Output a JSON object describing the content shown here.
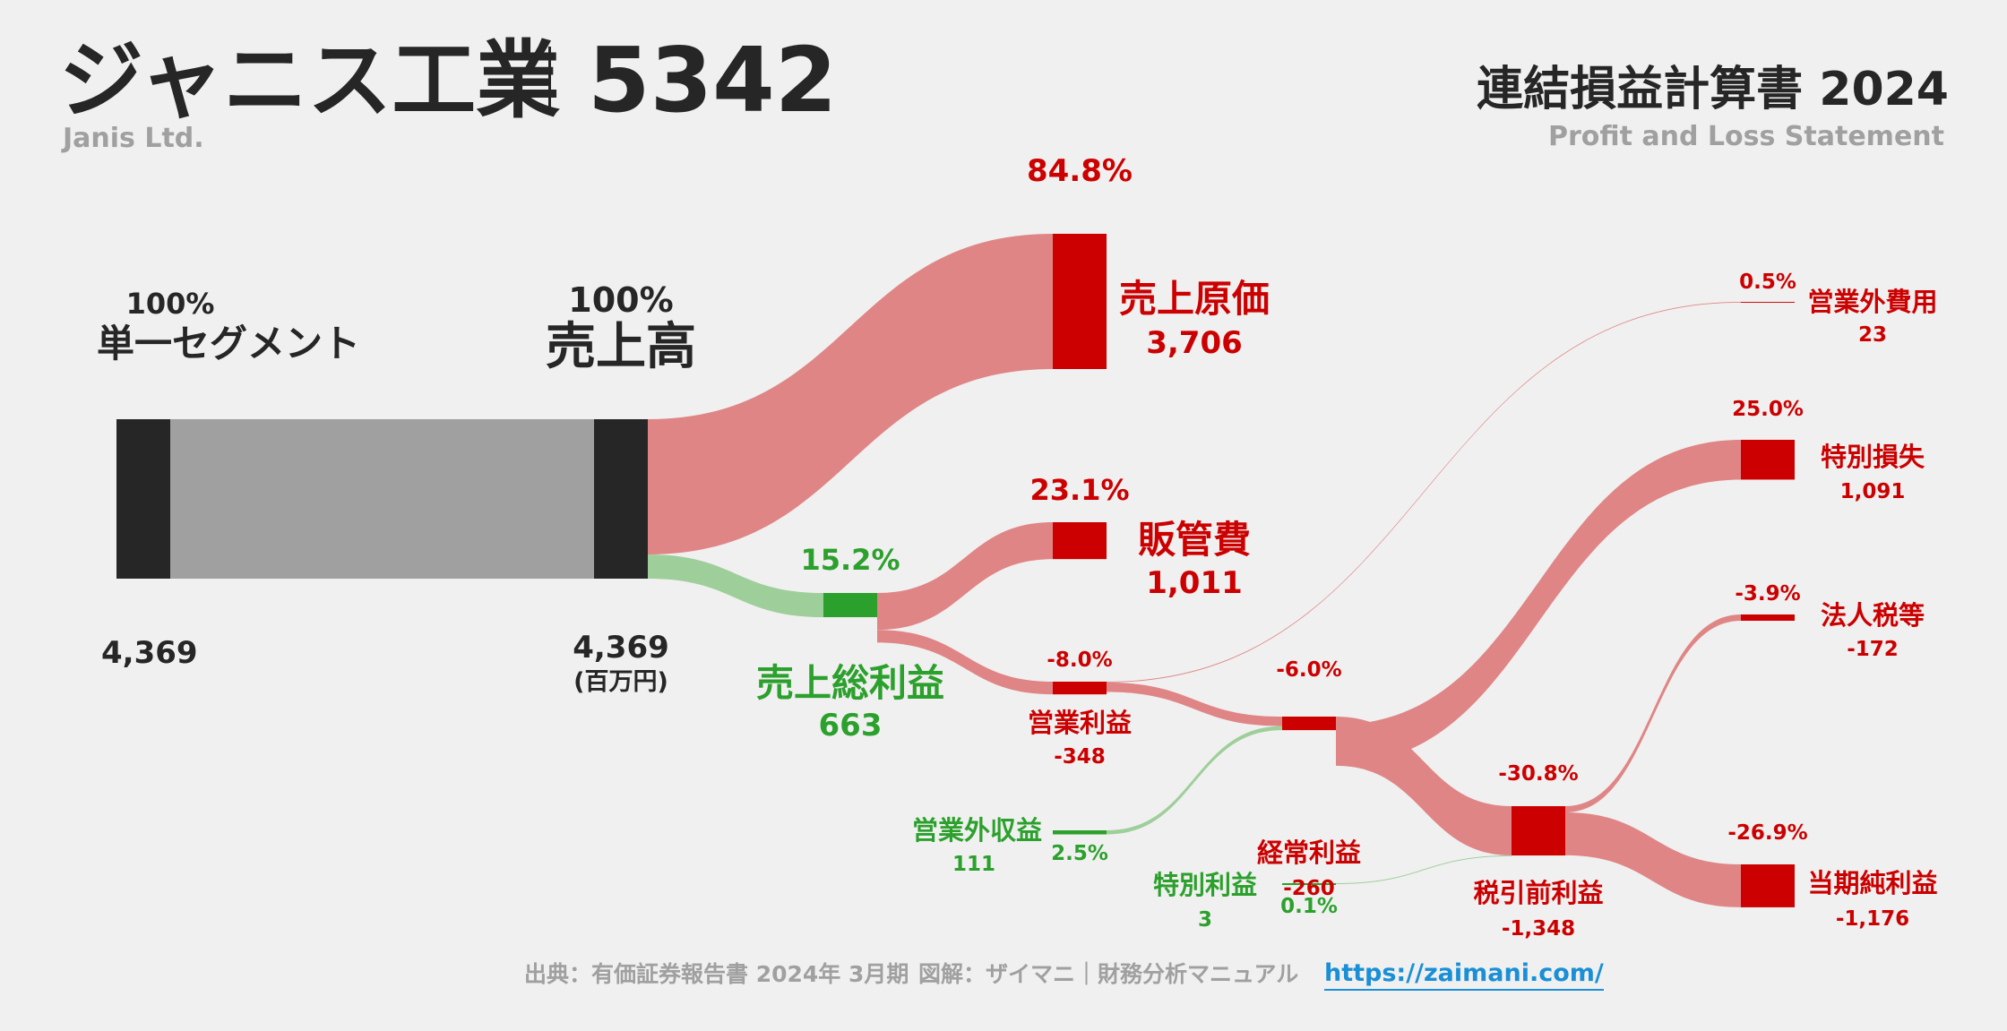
{
  "header": {
    "company": "ジャニス工業",
    "code": "5342",
    "company_en": "Janis Ltd.",
    "statement": "連結損益計算書 2024",
    "statement_en": "Profit and Loss Statement"
  },
  "footer": {
    "source": "出典：有価証券報告書 2024年 3月期",
    "credit": "図解：ザイマニ｜財務分析マニュアル",
    "url": "https://zaimani.com/"
  },
  "colors": {
    "red": "#cc0000",
    "red_flow": "#e08585",
    "green": "#2ca02c",
    "green_flow": "#9ecf9a",
    "dark": "#262626",
    "grey_flow": "#a0a0a0",
    "background": "#f0f0f0"
  },
  "chart_data": {
    "type": "sankey",
    "unit": "(百万円)",
    "nodes": [
      {
        "id": "segment",
        "label": "単一セグメント",
        "value": "4,369",
        "pct": "100%"
      },
      {
        "id": "revenue",
        "label": "売上高",
        "value": "4,369",
        "pct": "100%"
      },
      {
        "id": "cogs",
        "label": "売上原価",
        "value": "3,706",
        "pct": "84.8%"
      },
      {
        "id": "gross",
        "label": "売上総利益",
        "value": "663",
        "pct": "15.2%"
      },
      {
        "id": "sga",
        "label": "販管費",
        "value": "1,011",
        "pct": "23.1%"
      },
      {
        "id": "op",
        "label": "営業利益",
        "value": "-348",
        "pct": "-8.0%"
      },
      {
        "id": "nonop_inc",
        "label": "営業外収益",
        "value": "111",
        "pct": "2.5%"
      },
      {
        "id": "nonop_exp",
        "label": "営業外費用",
        "value": "23",
        "pct": "0.5%"
      },
      {
        "id": "ordinary",
        "label": "経常利益",
        "value": "-260",
        "pct": "-6.0%"
      },
      {
        "id": "ext_gain",
        "label": "特別利益",
        "value": "3",
        "pct": "0.1%"
      },
      {
        "id": "ext_loss",
        "label": "特別損失",
        "value": "1,091",
        "pct": "25.0%"
      },
      {
        "id": "pretax",
        "label": "税引前利益",
        "value": "-1,348",
        "pct": "-30.8%"
      },
      {
        "id": "tax",
        "label": "法人税等",
        "value": "-172",
        "pct": "-3.9%"
      },
      {
        "id": "net",
        "label": "当期純利益",
        "value": "-1,176",
        "pct": "-26.9%"
      }
    ],
    "links": [
      {
        "source": "segment",
        "target": "revenue",
        "value": 4369
      },
      {
        "source": "revenue",
        "target": "cogs",
        "value": 3706
      },
      {
        "source": "revenue",
        "target": "gross",
        "value": 663
      },
      {
        "source": "gross",
        "target": "sga",
        "value": 1011
      },
      {
        "source": "gross",
        "target": "op",
        "value": 348
      },
      {
        "source": "op",
        "target": "nonop_exp",
        "value": 23
      },
      {
        "source": "op",
        "target": "ordinary",
        "value": 260
      },
      {
        "source": "nonop_inc",
        "target": "ordinary",
        "value": 111
      },
      {
        "source": "ordinary",
        "target": "ext_loss",
        "value": 1091
      },
      {
        "source": "ordinary",
        "target": "pretax",
        "value": 1348
      },
      {
        "source": "ext_gain",
        "target": "pretax",
        "value": 3
      },
      {
        "source": "pretax",
        "target": "tax",
        "value": 172
      },
      {
        "source": "pretax",
        "target": "net",
        "value": 1176
      }
    ]
  }
}
